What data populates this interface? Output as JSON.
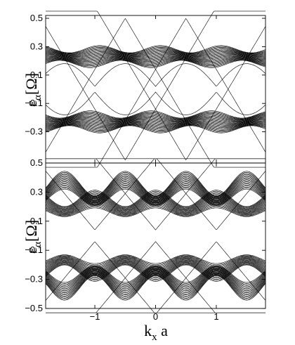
{
  "chart_data": [
    {
      "type": "line",
      "panel": "top",
      "xlim": [
        -1.81,
        1.81
      ],
      "ylim": [
        -0.52,
        0.52
      ],
      "yticks": [
        {
          "value": 0.5,
          "label": "0.5"
        },
        {
          "value": 0.3,
          "label": "0.3"
        },
        {
          "value": 0.1,
          "label": "0.1"
        },
        {
          "value": -0.1,
          "label": "−0.1"
        },
        {
          "value": -0.3,
          "label": "−0.3"
        }
      ],
      "xticks": [
        -1,
        0,
        1
      ],
      "ylabel": {
        "main": "ε",
        "sub": "α",
        "unit": "[Ω]"
      },
      "grid": false,
      "bulk_bands": {
        "count": 24,
        "center": 0.23,
        "width_min": 0.03,
        "width_max": 0.075,
        "period": 1.0
      },
      "edge_states": {
        "dirac_points_x": [
          -0.5,
          0.5
        ],
        "apex_energy": 0.5,
        "slope": 0.72
      }
    },
    {
      "type": "line",
      "panel": "bottom",
      "xlim": [
        -1.81,
        1.81
      ],
      "ylim": [
        -0.5,
        0.5
      ],
      "yticks": [
        {
          "value": 0.5,
          "label": "0.5"
        },
        {
          "value": 0.3,
          "label": "0.3"
        },
        {
          "value": 0.1,
          "label": "0.1"
        },
        {
          "value": -0.1,
          "label": "−0.1"
        },
        {
          "value": -0.3,
          "label": "−0.3"
        },
        {
          "value": -0.5,
          "label": "−0.5"
        }
      ],
      "xticks": [
        {
          "value": -1,
          "label": "−1"
        },
        {
          "value": 0,
          "label": "0"
        },
        {
          "value": 1,
          "label": "1"
        }
      ],
      "xlabel": {
        "main": "k",
        "sub": "x",
        "tail": " a"
      },
      "ylabel": {
        "main": "ε",
        "sub": "α",
        "unit": "[Ω]"
      },
      "grid": false,
      "bulk_bands": {
        "count": 36,
        "center": 0.26,
        "spread": 0.22,
        "period": 1.0
      },
      "edge_states": {
        "crossing_energy": 0.04,
        "slope": 0.5
      }
    }
  ]
}
